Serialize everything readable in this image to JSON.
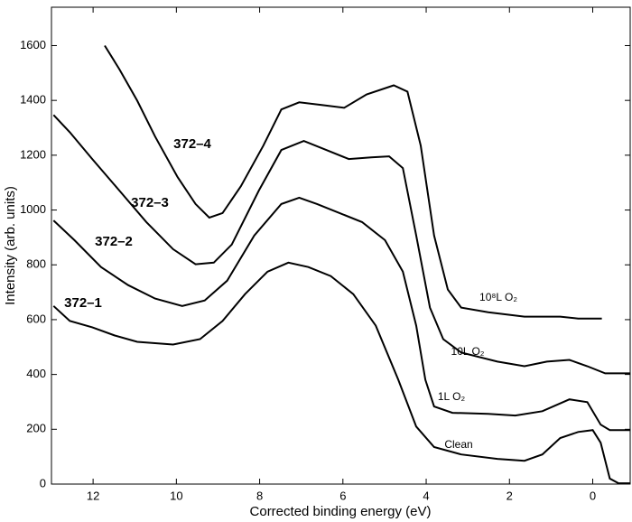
{
  "chart_data": {
    "type": "line",
    "xlabel": "Corrected binding energy (eV)",
    "ylabel": "Intensity (arb. units)",
    "xlim": [
      13,
      -0.9
    ],
    "ylim": [
      0,
      1740
    ],
    "xticks": [
      12,
      10,
      8,
      6,
      4,
      2,
      0
    ],
    "yticks": [
      0,
      200,
      400,
      600,
      800,
      1000,
      1200,
      1400,
      1600
    ],
    "color": "#000000",
    "series": [
      {
        "name": "Clean",
        "label": "372–1",
        "x": [
          12.95,
          12.56,
          12.02,
          11.48,
          10.94,
          10.08,
          9.43,
          8.89,
          8.35,
          7.81,
          7.31,
          6.83,
          6.29,
          5.75,
          5.21,
          4.67,
          4.24,
          3.81,
          3.16,
          2.29,
          1.64,
          1.21,
          0.78,
          0.35,
          0,
          -0.19,
          -0.41,
          -0.62,
          -0.91
        ],
        "values": [
          650,
          595,
          572,
          542,
          519,
          509,
          529,
          595,
          693,
          775,
          808,
          792,
          759,
          693,
          578,
          381,
          210,
          135,
          108,
          92,
          85,
          108,
          168,
          190,
          197,
          151,
          20,
          3,
          3
        ]
      },
      {
        "name": "1L O₂",
        "label": "372–2",
        "x": [
          12.95,
          12.45,
          11.81,
          11.16,
          10.51,
          9.86,
          9.32,
          8.78,
          8.13,
          7.48,
          7.05,
          6.62,
          6.08,
          5.54,
          4.99,
          4.56,
          4.24,
          4.02,
          3.81,
          3.37,
          2.51,
          1.86,
          1.21,
          0.56,
          0.13,
          -0.19,
          -0.41,
          -0.91
        ],
        "values": [
          962,
          890,
          792,
          726,
          677,
          650,
          670,
          742,
          907,
          1022,
          1045,
          1022,
          989,
          956,
          890,
          775,
          578,
          381,
          283,
          260,
          256,
          250,
          266,
          309,
          299,
          217,
          197,
          197
        ]
      },
      {
        "name": "10L O₂",
        "label": "372–3",
        "x": [
          12.95,
          12.56,
          12.02,
          11.37,
          10.72,
          10.08,
          9.54,
          9.1,
          8.67,
          8.02,
          7.48,
          6.94,
          6.4,
          5.86,
          5.32,
          4.89,
          4.56,
          4.24,
          3.91,
          3.59,
          3.16,
          2.29,
          1.64,
          1.1,
          0.56,
          0.13,
          -0.3,
          -0.91
        ],
        "values": [
          1347,
          1284,
          1186,
          1071,
          956,
          857,
          802,
          808,
          874,
          1071,
          1219,
          1252,
          1219,
          1186,
          1192,
          1196,
          1153,
          907,
          644,
          529,
          480,
          447,
          430,
          447,
          453,
          430,
          404,
          404
        ]
      },
      {
        "name": "10⁸L O₂",
        "label": "372–4",
        "x": [
          11.72,
          11.37,
          10.94,
          10.51,
          9.97,
          9.54,
          9.21,
          8.89,
          8.45,
          7.91,
          7.48,
          7.05,
          6.51,
          5.97,
          5.43,
          4.78,
          4.45,
          4.13,
          3.81,
          3.48,
          3.16,
          2.51,
          1.64,
          0.78,
          0.35,
          -0.22
        ],
        "values": [
          1600,
          1514,
          1399,
          1268,
          1120,
          1022,
          972,
          989,
          1087,
          1235,
          1367,
          1393,
          1383,
          1373,
          1422,
          1455,
          1432,
          1235,
          907,
          710,
          644,
          627,
          611,
          611,
          604,
          604
        ]
      }
    ]
  }
}
